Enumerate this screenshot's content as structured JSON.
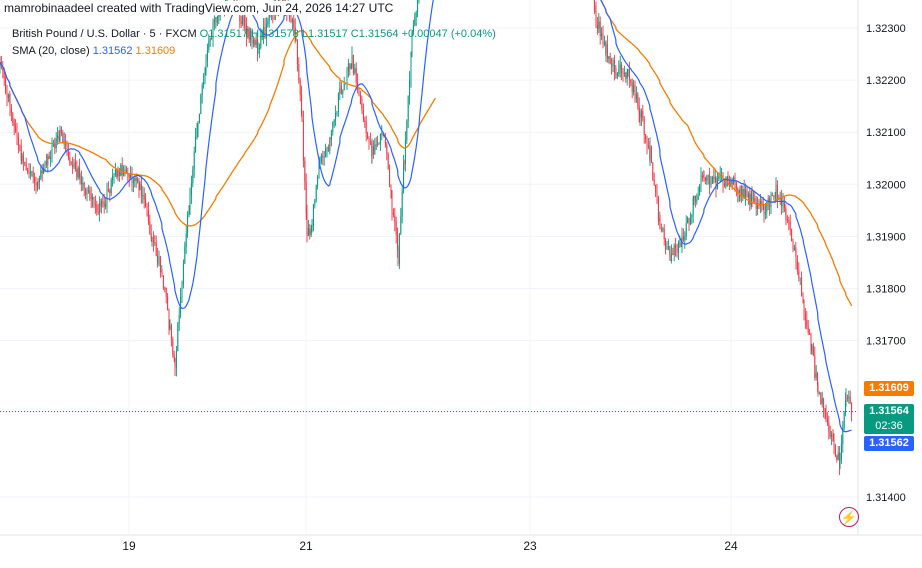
{
  "header": {
    "caption": "mamrobinaadeel created with TradingView.com, Jun 24, 2026 14:27 UTC"
  },
  "legend": {
    "symbol": "British Pound / U.S. Dollar · 5 · FXCM",
    "ohlc_open": "O1.31517",
    "ohlc_high": "H1.31578",
    "ohlc_low": "L1.31517",
    "ohlc_close": "C1.31564",
    "ohlc_change": "+0.00047 (+0.04%)",
    "sma_label": "SMA (20, close)",
    "sma20_value": "1.31562",
    "sma_slow_value": "1.31609"
  },
  "price_tags": {
    "sma_slow": "1.31609",
    "last_price": "1.31564",
    "countdown": "02:36",
    "sma20": "1.31562"
  },
  "colors": {
    "up": "#089981",
    "down": "#f23645",
    "sma20": "#2962ff",
    "sma_slow": "#f57c00",
    "grid": "#f0f3fa",
    "axis_text": "#131722",
    "logo": "#c2185b"
  },
  "icons": {
    "logo": "tradingview-logo-icon"
  },
  "chart_data": {
    "type": "candlestick",
    "instrument": "British Pound / U.S. Dollar",
    "interval": "5",
    "source": "FXCM",
    "x_ticks": [
      "19",
      "21",
      "23",
      "24"
    ],
    "y_ticks": [
      1.314,
      1.317,
      1.318,
      1.319,
      1.32,
      1.321,
      1.322,
      1.323
    ],
    "ylim": [
      1.3136,
      1.3238
    ],
    "grid": true,
    "last_price": 1.31564,
    "sma20_last": 1.31562,
    "sma_slow_last": 1.31609,
    "price_path": [
      [
        0,
        1.3223
      ],
      [
        10,
        1.3215
      ],
      [
        22,
        1.3205
      ],
      [
        38,
        1.32
      ],
      [
        60,
        1.321
      ],
      [
        80,
        1.3201
      ],
      [
        100,
        1.3195
      ],
      [
        118,
        1.3203
      ],
      [
        140,
        1.32
      ],
      [
        152,
        1.319
      ],
      [
        162,
        1.3183
      ],
      [
        170,
        1.3172
      ],
      [
        175,
        1.3166
      ],
      [
        182,
        1.3182
      ],
      [
        190,
        1.3198
      ],
      [
        198,
        1.3212
      ],
      [
        206,
        1.3224
      ],
      [
        216,
        1.3232
      ],
      [
        230,
        1.3237
      ],
      [
        245,
        1.323
      ],
      [
        258,
        1.3226
      ],
      [
        270,
        1.3232
      ],
      [
        284,
        1.3236
      ],
      [
        296,
        1.3228
      ],
      [
        302,
        1.3212
      ],
      [
        307,
        1.319
      ],
      [
        312,
        1.3193
      ],
      [
        320,
        1.3205
      ],
      [
        330,
        1.3208
      ],
      [
        340,
        1.3218
      ],
      [
        352,
        1.3224
      ],
      [
        362,
        1.3214
      ],
      [
        372,
        1.3206
      ],
      [
        384,
        1.321
      ],
      [
        392,
        1.3196
      ],
      [
        398,
        1.3186
      ],
      [
        404,
        1.3204
      ],
      [
        412,
        1.3228
      ],
      [
        420,
        1.324
      ],
      [
        436,
        1.3245
      ],
      [
        586,
        1.3244
      ],
      [
        596,
        1.3232
      ],
      [
        606,
        1.3226
      ],
      [
        616,
        1.3222
      ],
      [
        628,
        1.3221
      ],
      [
        640,
        1.3214
      ],
      [
        650,
        1.3206
      ],
      [
        660,
        1.3192
      ],
      [
        670,
        1.3186
      ],
      [
        682,
        1.3189
      ],
      [
        694,
        1.3197
      ],
      [
        704,
        1.3202
      ],
      [
        716,
        1.32
      ],
      [
        728,
        1.3201
      ],
      [
        740,
        1.3199
      ],
      [
        752,
        1.3197
      ],
      [
        764,
        1.3195
      ],
      [
        776,
        1.3199
      ],
      [
        786,
        1.3194
      ],
      [
        796,
        1.3186
      ],
      [
        804,
        1.3176
      ],
      [
        812,
        1.3168
      ],
      [
        818,
        1.316
      ],
      [
        826,
        1.3156
      ],
      [
        834,
        1.315
      ],
      [
        840,
        1.3146
      ],
      [
        846,
        1.316
      ],
      [
        852,
        1.31564
      ]
    ]
  }
}
